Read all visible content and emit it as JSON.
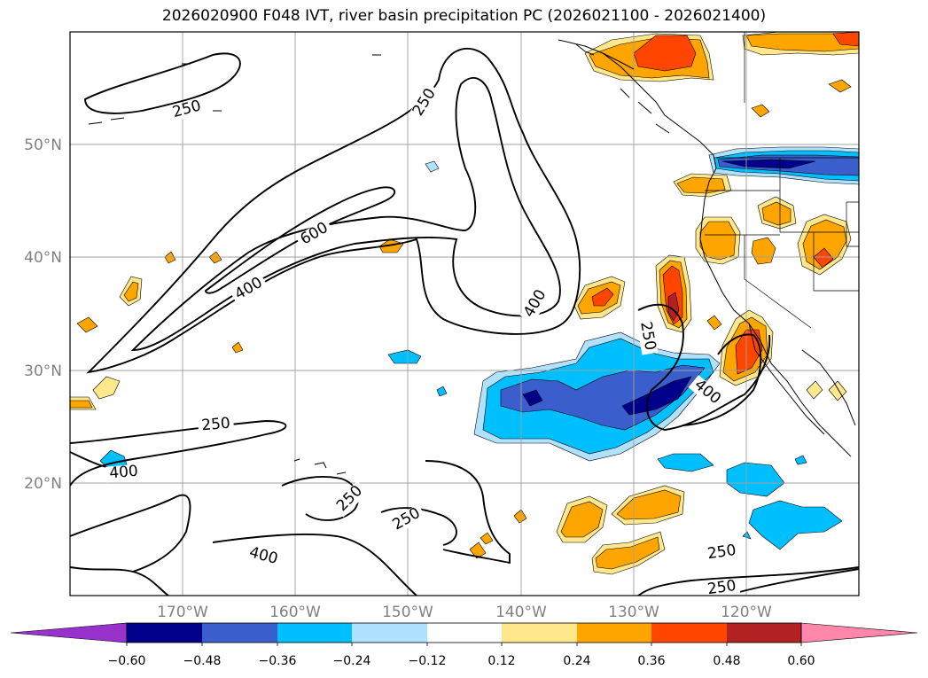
{
  "title": "2026020900 F048 IVT, river basin precipitation PC (2026021100 - 2026021400)",
  "map": {
    "projection": "PlateCarree",
    "lon_range": [
      -180,
      -110
    ],
    "lat_range": [
      10,
      60
    ],
    "lat_labels": [
      "50°N",
      "40°N",
      "30°N",
      "20°N"
    ],
    "lon_labels": [
      "170°W",
      "160°W",
      "150°W",
      "140°W",
      "130°W",
      "120°W"
    ],
    "contour_levels": [
      250,
      400,
      600
    ],
    "contour_labels": [
      {
        "text": "250"
      },
      {
        "text": "250"
      },
      {
        "text": "600"
      },
      {
        "text": "400"
      },
      {
        "text": "400"
      },
      {
        "text": "250"
      },
      {
        "text": "400"
      },
      {
        "text": "250"
      },
      {
        "text": "400"
      },
      {
        "text": "250"
      },
      {
        "text": "250"
      },
      {
        "text": "400"
      },
      {
        "text": "250"
      },
      {
        "text": "250"
      }
    ]
  },
  "colorbar": {
    "ticks": [
      "−0.60",
      "−0.48",
      "−0.36",
      "−0.24",
      "−0.12",
      "0.12",
      "0.24",
      "0.36",
      "0.48",
      "0.60"
    ],
    "colors": [
      "#9932cc",
      "#00008b",
      "#3a5fcd",
      "#00bfff",
      "#b0e2ff",
      "#ffffff",
      "#ffe78c",
      "#ffa500",
      "#ff4500",
      "#b22222",
      "#ff87aa"
    ],
    "extend": "both"
  },
  "fill_colors": {
    "neg_light": "#b0e2ff",
    "neg_mid": "#00bfff",
    "neg_strong": "#3a5fcd",
    "neg_max": "#00008b",
    "pos_light": "#ffe78c",
    "pos_mid": "#ffa500",
    "pos_strong": "#ff4500",
    "pos_max": "#b22222"
  }
}
